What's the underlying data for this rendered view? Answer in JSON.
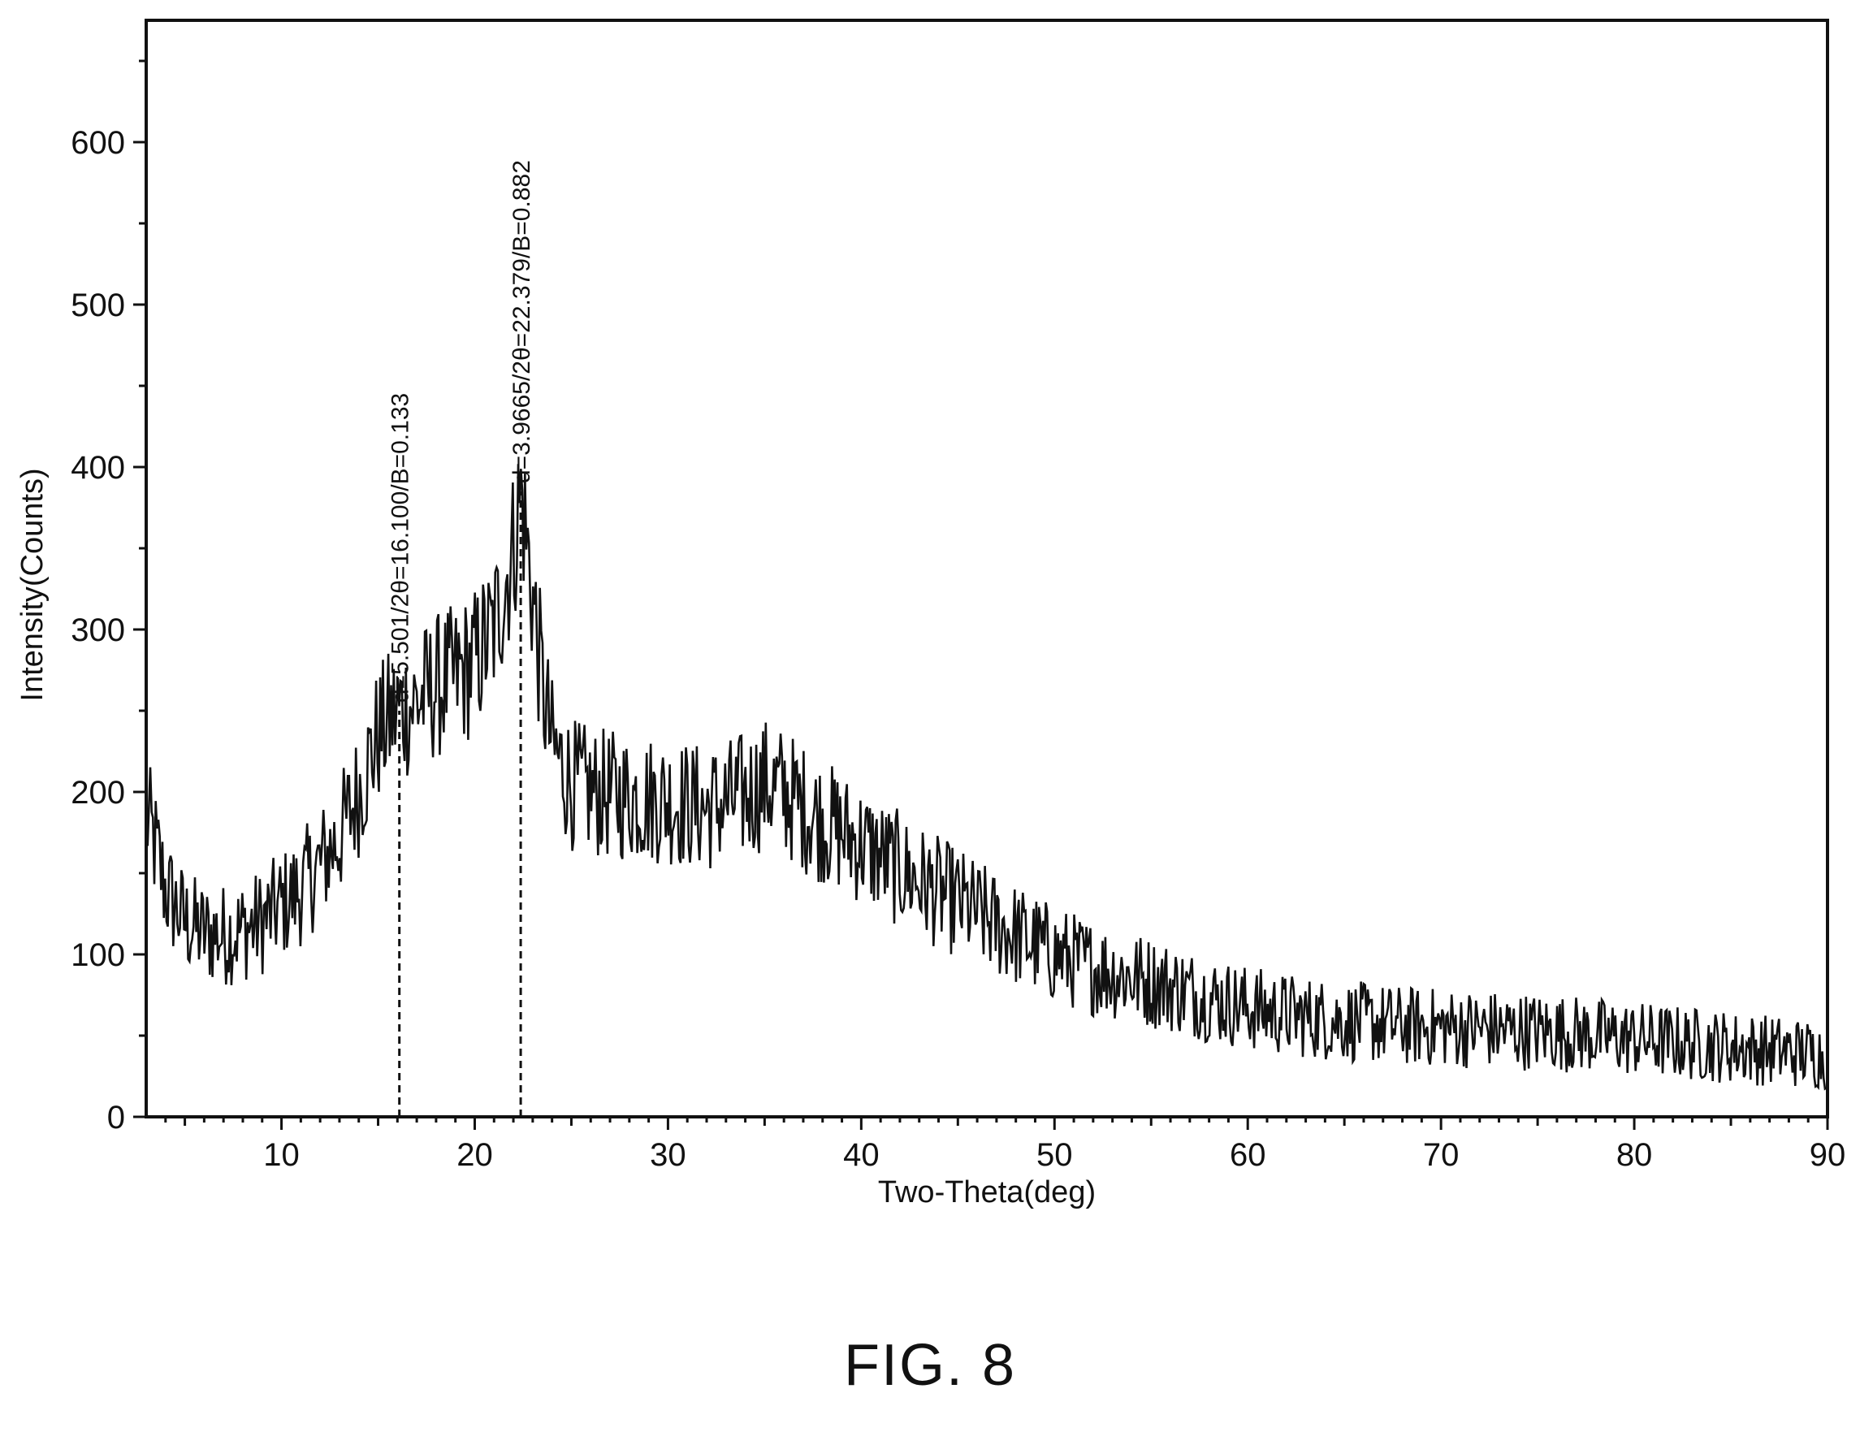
{
  "figure": {
    "caption": "FIG. 8"
  },
  "chart_data": {
    "type": "line",
    "title": "",
    "xlabel": "Two-Theta(deg)",
    "ylabel": "Intensity(Counts)",
    "xlim": [
      3,
      90
    ],
    "ylim": [
      0,
      675
    ],
    "x_ticks": [
      10,
      20,
      30,
      40,
      50,
      60,
      70,
      80,
      90
    ],
    "y_ticks": [
      0,
      100,
      200,
      300,
      400,
      500,
      600
    ],
    "grid": false,
    "legend": "none",
    "series": [
      {
        "x": [
          3,
          3.5,
          4,
          5,
          6,
          7,
          8,
          9,
          10,
          11,
          12,
          13,
          14,
          15,
          16,
          17,
          18,
          19,
          20,
          21,
          22,
          22.4,
          23,
          23.5,
          24,
          25,
          26,
          27,
          28,
          29,
          30,
          31,
          32,
          33,
          34,
          35,
          36,
          37,
          38,
          39,
          40,
          41,
          42,
          43,
          44,
          45,
          46,
          47,
          48,
          49,
          50,
          52,
          54,
          56,
          58,
          60,
          62,
          64,
          66,
          68,
          70,
          72,
          74,
          76,
          78,
          80,
          82,
          84,
          86,
          88,
          90
        ],
        "y": [
          185,
          165,
          140,
          120,
          113,
          112,
          115,
          120,
          130,
          140,
          155,
          172,
          200,
          235,
          250,
          255,
          265,
          270,
          280,
          300,
          350,
          385,
          320,
          265,
          228,
          205,
          200,
          198,
          197,
          196,
          195,
          192,
          190,
          193,
          198,
          205,
          200,
          190,
          182,
          175,
          168,
          160,
          152,
          145,
          138,
          132,
          125,
          118,
          112,
          106,
          100,
          92,
          86,
          80,
          73,
          67,
          63,
          60,
          58,
          56,
          55,
          54,
          53,
          52,
          50,
          48,
          46,
          44,
          42,
          40,
          38
        ]
      }
    ],
    "annotations": [
      {
        "x": 16.1,
        "y": 250,
        "text": "d=5.501/2θ=16.100/B=0.133"
      },
      {
        "x": 22.379,
        "y": 385,
        "text": "d=3.9665/2θ=22.379/B=0.882"
      }
    ]
  }
}
